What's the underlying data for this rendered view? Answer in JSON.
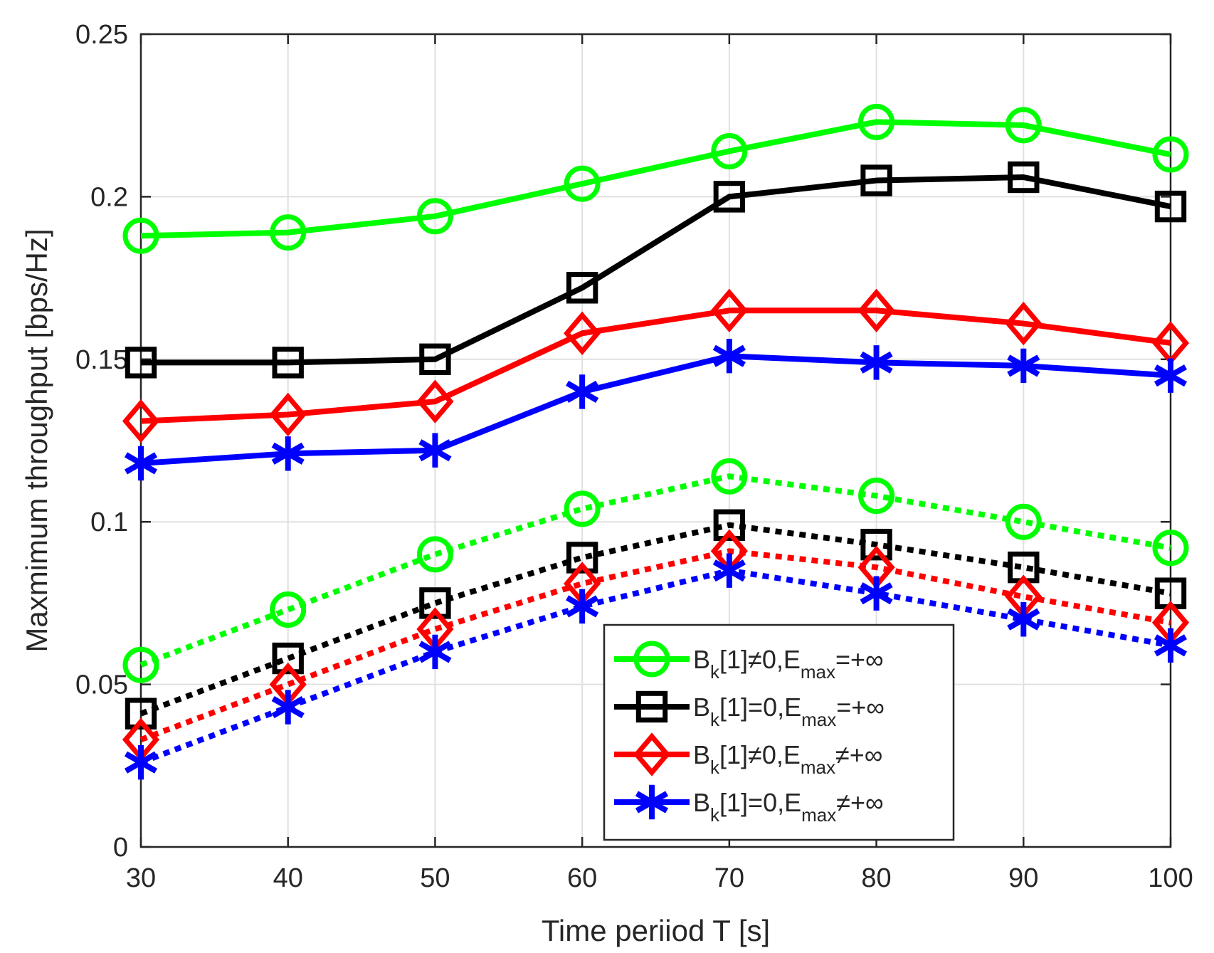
{
  "chart_data": {
    "type": "line",
    "title": "",
    "xlabel": "Time periiod T [s]",
    "ylabel": "Maxmimum throughput [bps/Hz]",
    "x": [
      30,
      40,
      50,
      60,
      70,
      80,
      90,
      100
    ],
    "xlim": [
      30,
      100
    ],
    "ylim": [
      0,
      0.25
    ],
    "x_ticks": [
      "30",
      "40",
      "50",
      "60",
      "70",
      "80",
      "90",
      "100"
    ],
    "y_ticks": [
      "0",
      "0.05",
      "0.1",
      "0.15",
      "0.2",
      "0.25"
    ],
    "grid": true,
    "legend_position": "bottom-right",
    "series": [
      {
        "name": "green-solid-circle",
        "color": "#00ff00",
        "line": "solid",
        "marker": "circle",
        "values": [
          0.188,
          0.189,
          0.194,
          0.204,
          0.214,
          0.223,
          0.222,
          0.213
        ]
      },
      {
        "name": "black-solid-square",
        "color": "#000000",
        "line": "solid",
        "marker": "square",
        "values": [
          0.149,
          0.149,
          0.15,
          0.172,
          0.2,
          0.205,
          0.206,
          0.197
        ]
      },
      {
        "name": "red-solid-diamond",
        "color": "#ff0000",
        "line": "solid",
        "marker": "diamond",
        "values": [
          0.131,
          0.133,
          0.137,
          0.158,
          0.165,
          0.165,
          0.161,
          0.155
        ]
      },
      {
        "name": "blue-solid-star",
        "color": "#0000ff",
        "line": "solid",
        "marker": "star",
        "values": [
          0.118,
          0.121,
          0.122,
          0.14,
          0.151,
          0.149,
          0.148,
          0.145
        ]
      },
      {
        "name": "green-dotted-circle",
        "color": "#00ff00",
        "line": "dotted",
        "marker": "circle",
        "values": [
          0.056,
          0.073,
          0.09,
          0.104,
          0.114,
          0.108,
          0.1,
          0.092
        ]
      },
      {
        "name": "black-dotted-square",
        "color": "#000000",
        "line": "dotted",
        "marker": "square",
        "values": [
          0.041,
          0.058,
          0.075,
          0.089,
          0.099,
          0.093,
          0.086,
          0.078
        ]
      },
      {
        "name": "red-dotted-diamond",
        "color": "#ff0000",
        "line": "dotted",
        "marker": "diamond",
        "values": [
          0.033,
          0.05,
          0.067,
          0.081,
          0.091,
          0.086,
          0.077,
          0.069
        ]
      },
      {
        "name": "blue-dotted-star",
        "color": "#0000ff",
        "line": "dotted",
        "marker": "star",
        "values": [
          0.026,
          0.043,
          0.06,
          0.074,
          0.085,
          0.078,
          0.07,
          0.062
        ]
      }
    ],
    "legend": [
      {
        "marker": "circle",
        "color": "#00ff00",
        "B": "B",
        "k": "k",
        "bracket": "[1]",
        "op1": "≠",
        "zero": "0,",
        "E": "E",
        "max": "max",
        "op2": "=+∞"
      },
      {
        "marker": "square",
        "color": "#000000",
        "B": "B",
        "k": "k",
        "bracket": "[1]",
        "op1": "=",
        "zero": "0,",
        "E": "E",
        "max": "max",
        "op2": "=+∞"
      },
      {
        "marker": "diamond",
        "color": "#ff0000",
        "B": "B",
        "k": "k",
        "bracket": "[1]",
        "op1": "≠",
        "zero": "0,",
        "E": "E",
        "max": "max",
        "op2": "≠+∞"
      },
      {
        "marker": "star",
        "color": "#0000ff",
        "B": "B",
        "k": "k",
        "bracket": "[1]",
        "op1": "=",
        "zero": "0,",
        "E": "E",
        "max": "max",
        "op2": "≠+∞"
      }
    ]
  }
}
